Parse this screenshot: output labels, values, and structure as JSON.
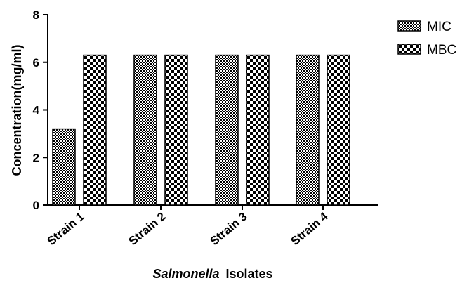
{
  "chart_data": {
    "type": "bar",
    "categories": [
      "Strain 1",
      "Strain 2",
      "Strain 3",
      "Strain 4"
    ],
    "series": [
      {
        "name": "MIC",
        "values": [
          3.2,
          6.3,
          6.3,
          6.3
        ]
      },
      {
        "name": "MBC",
        "values": [
          6.3,
          6.3,
          6.3,
          6.3
        ]
      }
    ],
    "ylabel": "Concentration(mg/ml)",
    "xlabel_italic": "Salmonella",
    "xlabel_rest": "Isolates",
    "ylim": [
      0,
      8
    ],
    "yticks": [
      0,
      2,
      4,
      6,
      8
    ],
    "grid": false,
    "legend_position": "top-right",
    "colors": {
      "bar_fill_light": "#ffffff",
      "bar_pattern": "#000000"
    }
  }
}
